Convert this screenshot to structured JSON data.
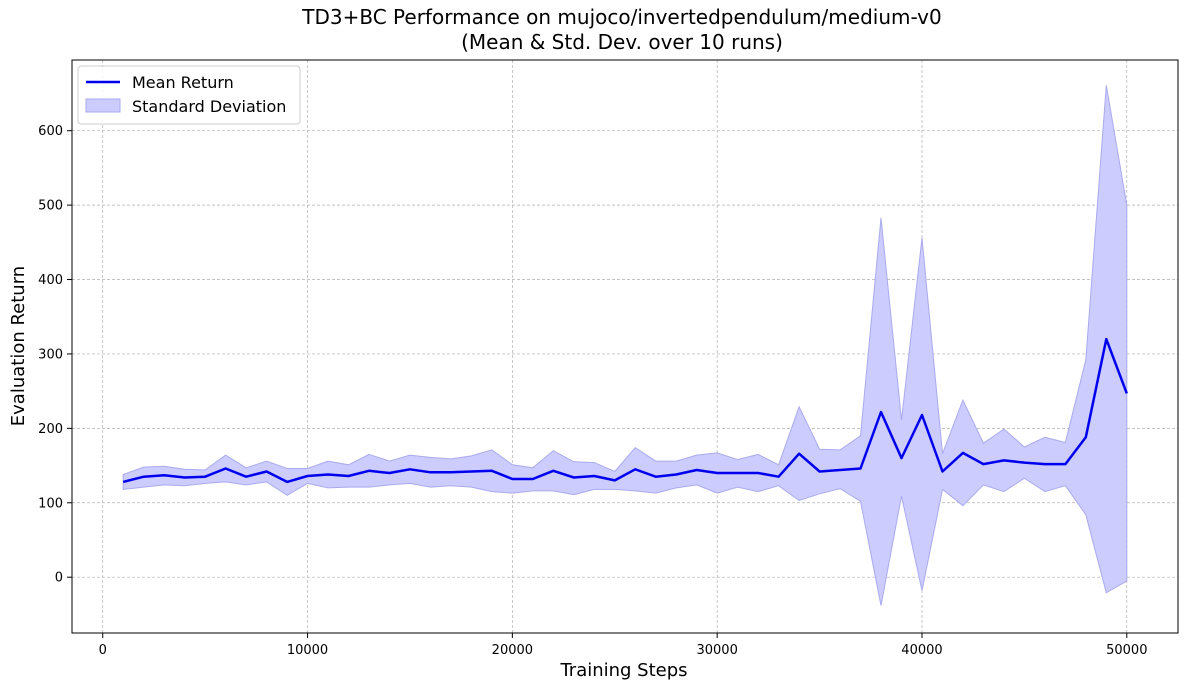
{
  "chart_data": {
    "type": "line",
    "title": "TD3+BC Performance on mujoco/invertedpendulum/medium-v0",
    "subtitle": "(Mean & Std. Dev. over 10 runs)",
    "xlabel": "Training Steps",
    "ylabel": "Evaluation Return",
    "xlim": [
      -1500,
      52500
    ],
    "ylim": [
      -75,
      695
    ],
    "xticks": [
      0,
      10000,
      20000,
      30000,
      40000,
      50000
    ],
    "yticks": [
      0,
      100,
      200,
      300,
      400,
      500,
      600
    ],
    "grid": true,
    "legend_position": "upper-left",
    "x": [
      1000,
      2000,
      3000,
      4000,
      5000,
      6000,
      7000,
      8000,
      9000,
      10000,
      11000,
      12000,
      13000,
      14000,
      15000,
      16000,
      17000,
      18000,
      19000,
      20000,
      21000,
      22000,
      23000,
      24000,
      25000,
      26000,
      27000,
      28000,
      29000,
      30000,
      31000,
      32000,
      33000,
      34000,
      35000,
      36000,
      37000,
      38000,
      39000,
      40000,
      41000,
      42000,
      43000,
      44000,
      45000,
      46000,
      47000,
      48000,
      49000,
      50000
    ],
    "series": [
      {
        "name": "Mean Return",
        "color": "#0000ee",
        "values": [
          128,
          135,
          137,
          134,
          135,
          146,
          135,
          142,
          128,
          136,
          138,
          136,
          143,
          140,
          145,
          141,
          141,
          142,
          143,
          132,
          132,
          143,
          134,
          136,
          130,
          145,
          135,
          138,
          144,
          140,
          140,
          140,
          135,
          166,
          142,
          144,
          146,
          222,
          160,
          218,
          142,
          167,
          152,
          157,
          154,
          152,
          152,
          188,
          320,
          247
        ]
      },
      {
        "name": "Standard Deviation",
        "color": "#ccccff",
        "upper": [
          138,
          148,
          149,
          145,
          144,
          164,
          147,
          156,
          146,
          146,
          156,
          151,
          165,
          156,
          164,
          161,
          159,
          163,
          171,
          151,
          147,
          170,
          155,
          154,
          142,
          174,
          156,
          156,
          164,
          167,
          158,
          165,
          151,
          229,
          172,
          171,
          190,
          483,
          211,
          456,
          166,
          238,
          180,
          199,
          175,
          188,
          181,
          292,
          661,
          500
        ],
        "lower": [
          118,
          121,
          124,
          123,
          126,
          128,
          124,
          128,
          110,
          126,
          120,
          121,
          121,
          124,
          126,
          121,
          123,
          121,
          115,
          113,
          116,
          116,
          111,
          118,
          118,
          116,
          113,
          120,
          124,
          113,
          121,
          115,
          123,
          103,
          112,
          119,
          102,
          -38,
          109,
          -18,
          118,
          96,
          124,
          115,
          133,
          115,
          123,
          84,
          -21,
          -5
        ]
      }
    ]
  }
}
